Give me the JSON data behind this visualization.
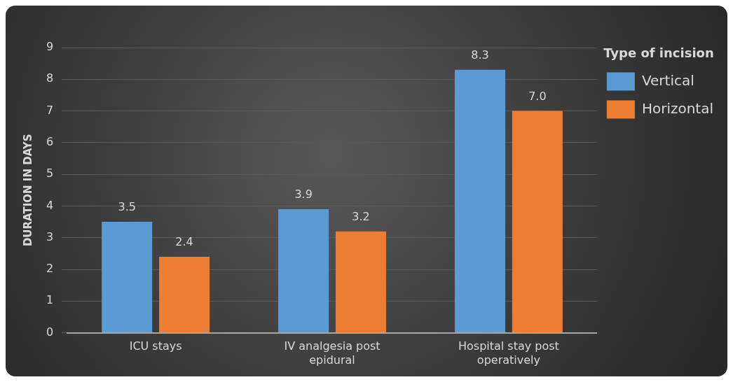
{
  "chart_data": {
    "type": "bar",
    "ylabel": "DURATION IN DAYS",
    "legend_title": "Type of incision",
    "categories": [
      "ICU stays",
      "IV analgesia post epidural",
      "Hospital stay post operatively"
    ],
    "series": [
      {
        "name": "Vertical",
        "color": "#5b9bd5",
        "values": [
          3.5,
          3.9,
          8.3
        ],
        "value_labels": [
          "3.5",
          "3.9",
          "8.3"
        ]
      },
      {
        "name": "Horizontal",
        "color": "#ed7d31",
        "values": [
          2.4,
          3.2,
          7.0
        ],
        "value_labels": [
          "2.4",
          "3.2",
          "7.0"
        ]
      }
    ],
    "ylim": [
      0,
      9
    ],
    "yticks": [
      0,
      1,
      2,
      3,
      4,
      5,
      6,
      7,
      8,
      9
    ],
    "grid": "y",
    "legend": "right"
  }
}
